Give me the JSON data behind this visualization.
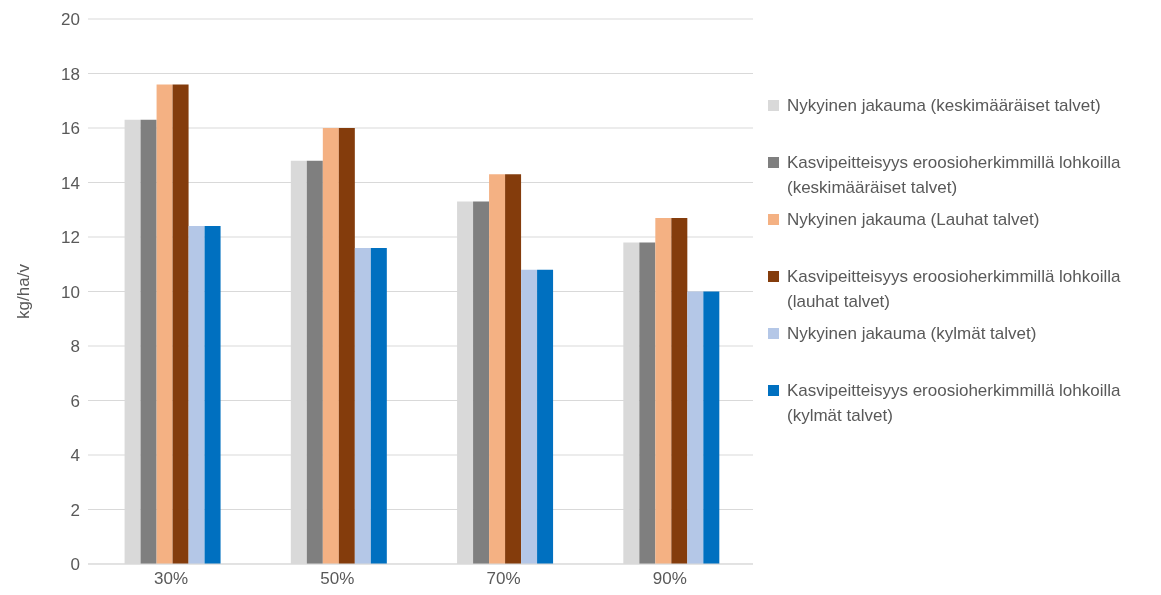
{
  "chart_data": {
    "type": "bar",
    "ylabel": "kg/ha/v",
    "categories": [
      "30%",
      "50%",
      "70%",
      "90%"
    ],
    "series": [
      {
        "name": "Nykyinen jakauma (keskimääräiset talvet)",
        "color": "#d9d9d9",
        "values": [
          16.3,
          14.8,
          13.3,
          11.8
        ]
      },
      {
        "name": "Kasvipeitteisyys eroosioherkimmillä lohkoilla (keskimääräiset talvet)",
        "color": "#7f7f7f",
        "values": [
          16.3,
          14.8,
          13.3,
          11.8
        ]
      },
      {
        "name": "Nykyinen jakauma (Lauhat talvet)",
        "color": "#f4b183",
        "values": [
          17.6,
          16.0,
          14.3,
          12.7
        ]
      },
      {
        "name": "Kasvipeitteisyys eroosioherkimmillä lohkoilla (lauhat talvet)",
        "color": "#843c0c",
        "values": [
          17.6,
          16.0,
          14.3,
          12.7
        ]
      },
      {
        "name": "Nykyinen jakauma (kylmät talvet)",
        "color": "#b4c7e7",
        "values": [
          12.4,
          11.6,
          10.8,
          10.0
        ]
      },
      {
        "name": "Kasvipeitteisyys eroosioherkimmillä lohkoilla (kylmät talvet)",
        "color": "#0070c0",
        "values": [
          12.4,
          11.6,
          10.8,
          10.0
        ]
      }
    ],
    "ylim": [
      0,
      20
    ],
    "yticks": [
      0,
      2,
      4,
      6,
      8,
      10,
      12,
      14,
      16,
      18,
      20
    ],
    "grid": "y",
    "legend": "right"
  }
}
